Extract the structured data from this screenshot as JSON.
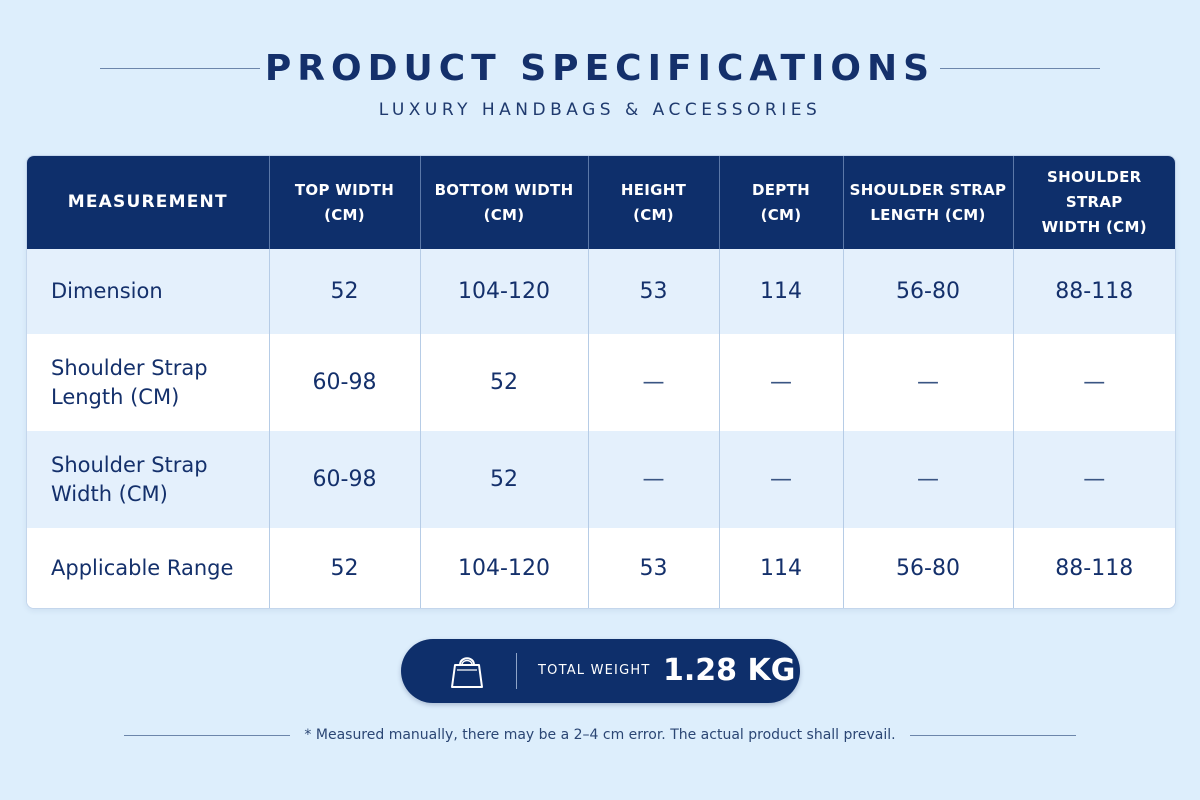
{
  "header": {
    "title": "PRODUCT SPECIFICATIONS",
    "subtitle": "LUXURY HANDBAGS & ACCESSORIES"
  },
  "table": {
    "columns": [
      [
        "MEASUREMENT"
      ],
      [
        "TOP WIDTH",
        "(CM)"
      ],
      [
        "BOTTOM WIDTH",
        "(CM)"
      ],
      [
        "HEIGHT",
        "(CM)"
      ],
      [
        "DEPTH",
        "(CM)"
      ],
      [
        "SHOULDER STRAP",
        "LENGTH (CM)"
      ],
      [
        "SHOULDER STRAP",
        "WIDTH (CM)"
      ]
    ],
    "rows": [
      {
        "label": [
          "Dimension"
        ],
        "cells": [
          "52",
          "104-120",
          "53",
          "114",
          "56-80",
          "88-118"
        ]
      },
      {
        "label": [
          "Shoulder Strap",
          "Length (CM)"
        ],
        "cells": [
          "60-98",
          "52",
          "—",
          "—",
          "—",
          "—"
        ]
      },
      {
        "label": [
          "Shoulder Strap",
          "Width (CM)"
        ],
        "cells": [
          "60-98",
          "52",
          "—",
          "—",
          "—",
          "—"
        ]
      },
      {
        "label": [
          "Applicable Range"
        ],
        "cells": [
          "52",
          "104-120",
          "53",
          "114",
          "56-80",
          "88-118"
        ]
      }
    ]
  },
  "weight": {
    "icon": "handbag-icon",
    "label": "TOTAL WEIGHT",
    "value": "1.28 KG"
  },
  "footnote": "* Measured manually, there may be a 2–4 cm error. The actual product shall prevail.",
  "colors": {
    "background": "#ddeefc",
    "navy": "#0e2f6b",
    "row_tint": "#e4f0fc"
  }
}
